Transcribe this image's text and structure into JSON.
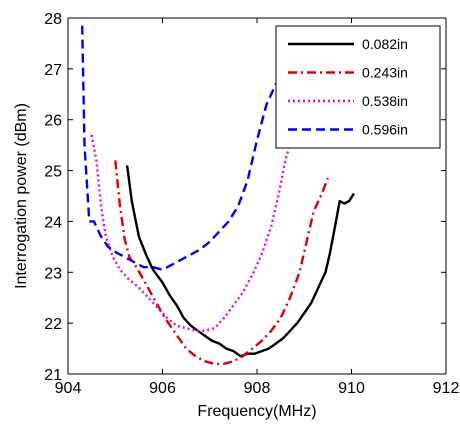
{
  "chart_data": {
    "type": "line",
    "title": "",
    "xlabel": "Frequency(MHz)",
    "ylabel": "Interrogation power (dBm)",
    "xlim": [
      904,
      912
    ],
    "ylim": [
      21,
      28
    ],
    "xticks": [
      904,
      906,
      908,
      910,
      912
    ],
    "yticks": [
      21,
      22,
      23,
      24,
      25,
      26,
      27,
      28
    ],
    "grid": false,
    "legend_position": "top-right",
    "series": [
      {
        "name": "0.082in",
        "color": "#000000",
        "style": "solid",
        "x": [
          905.25,
          905.35,
          905.5,
          905.65,
          905.8,
          906.0,
          906.15,
          906.3,
          906.45,
          906.6,
          906.75,
          906.9,
          907.05,
          907.2,
          907.35,
          907.5,
          907.65,
          907.8,
          907.95,
          908.1,
          908.25,
          908.4,
          908.55,
          908.7,
          908.85,
          909.0,
          909.15,
          909.3,
          909.45,
          909.55,
          909.65,
          909.75,
          909.85,
          909.95,
          910.05
        ],
        "y": [
          25.1,
          24.4,
          23.7,
          23.35,
          23.05,
          22.8,
          22.55,
          22.35,
          22.1,
          21.95,
          21.85,
          21.75,
          21.65,
          21.6,
          21.5,
          21.45,
          21.35,
          21.4,
          21.4,
          21.45,
          21.5,
          21.6,
          21.7,
          21.85,
          22.0,
          22.2,
          22.4,
          22.7,
          23.0,
          23.4,
          23.9,
          24.4,
          24.35,
          24.4,
          24.55
        ]
      },
      {
        "name": "0.243in",
        "color": "#dd0000",
        "style": "dashdot",
        "x": [
          905.0,
          905.1,
          905.2,
          905.3,
          905.45,
          905.6,
          905.75,
          905.9,
          906.05,
          906.2,
          906.35,
          906.5,
          906.7,
          906.9,
          907.1,
          907.3,
          907.5,
          907.7,
          907.9,
          908.1,
          908.3,
          908.5,
          908.7,
          908.9,
          909.05,
          909.2,
          909.35,
          909.5
        ],
        "y": [
          25.2,
          24.3,
          23.65,
          23.3,
          23.1,
          22.85,
          22.6,
          22.35,
          22.1,
          21.9,
          21.7,
          21.5,
          21.35,
          21.25,
          21.2,
          21.2,
          21.25,
          21.35,
          21.5,
          21.65,
          21.85,
          22.1,
          22.5,
          23.0,
          23.6,
          24.2,
          24.5,
          24.85
        ]
      },
      {
        "name": "0.538in",
        "color": "#ee00ee",
        "style": "dotted",
        "x": [
          904.5,
          904.6,
          904.7,
          904.8,
          904.95,
          905.1,
          905.3,
          905.5,
          905.7,
          905.9,
          906.1,
          906.3,
          906.5,
          906.7,
          906.9,
          907.1,
          907.3,
          907.5,
          907.7,
          907.9,
          908.1,
          908.3,
          908.45,
          908.6,
          908.75
        ],
        "y": [
          25.7,
          25.2,
          24.3,
          23.7,
          23.3,
          23.05,
          22.85,
          22.7,
          22.5,
          22.3,
          22.1,
          21.95,
          21.9,
          21.85,
          21.85,
          21.9,
          22.1,
          22.35,
          22.6,
          22.95,
          23.35,
          23.9,
          24.5,
          25.2,
          25.7
        ]
      },
      {
        "name": "0.596in",
        "color": "#0000ee",
        "style": "dashed",
        "x": [
          904.3,
          904.35,
          904.45,
          904.55,
          904.7,
          904.85,
          905.0,
          905.2,
          905.4,
          905.6,
          905.8,
          906.0,
          906.2,
          906.4,
          906.6,
          906.8,
          907.0,
          907.2,
          907.4,
          907.6,
          907.8,
          908.0,
          908.2,
          908.4,
          908.5
        ],
        "y": [
          27.85,
          25.5,
          24.0,
          24.0,
          23.7,
          23.5,
          23.4,
          23.3,
          23.2,
          23.1,
          23.1,
          23.05,
          23.15,
          23.25,
          23.35,
          23.45,
          23.6,
          23.8,
          24.0,
          24.3,
          24.8,
          25.6,
          26.3,
          26.7,
          26.75
        ]
      }
    ]
  }
}
